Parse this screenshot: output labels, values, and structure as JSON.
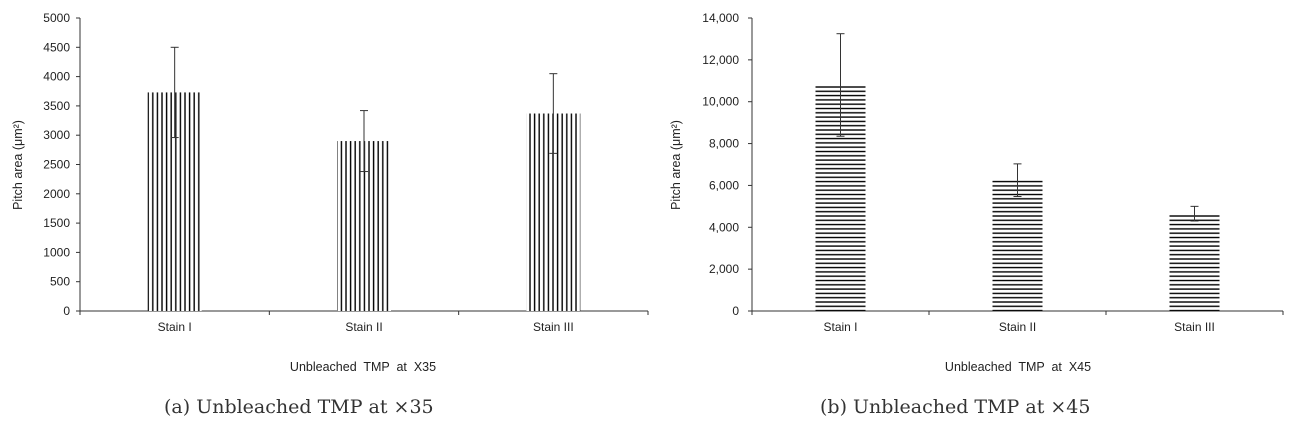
{
  "chart_data": [
    {
      "type": "bar",
      "categories": [
        "Stain I",
        "Stain II",
        "Stain III"
      ],
      "values": [
        3730,
        2900,
        3370
      ],
      "errors": [
        770,
        520,
        680
      ],
      "ylim": [
        0,
        5000
      ],
      "yticks": [
        "0",
        "500",
        "1000",
        "1500",
        "2000",
        "2500",
        "3000",
        "3500",
        "4000",
        "4500",
        "5000"
      ],
      "ylabel": "Pitch area  (μm²)",
      "xlabel": "Unbleached  TMP  at  X35",
      "hatch": "vertical",
      "caption": "(a)  Unbleached  TMP  at  ×35"
    },
    {
      "type": "bar",
      "categories": [
        "Stain I",
        "Stain II",
        "Stain III"
      ],
      "values": [
        10800,
        6250,
        4650
      ],
      "errors": [
        2450,
        780,
        350
      ],
      "ylim": [
        0,
        14000
      ],
      "yticks": [
        "0",
        "2,000",
        "4,000",
        "6,000",
        "8,000",
        "10,000",
        "12,000",
        "14,000"
      ],
      "ylabel": "Pitch area  (μm²)",
      "xlabel": "Unbleached  TMP  at  X45",
      "hatch": "horizontal",
      "caption": "(b)  Unbleached  TMP  at  ×45"
    }
  ]
}
